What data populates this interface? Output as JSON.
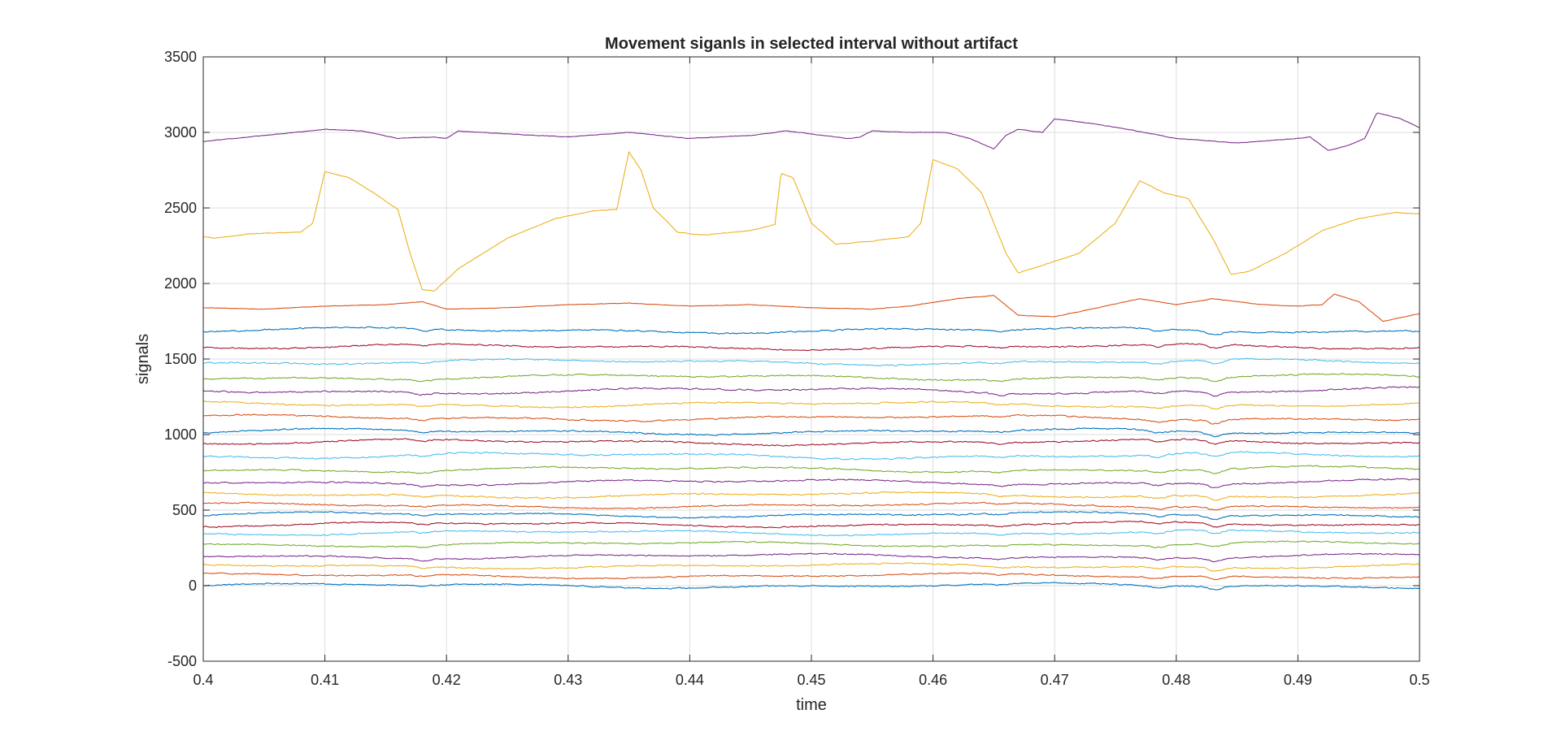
{
  "chart_data": {
    "type": "line",
    "title": "Movement siganls in selected interval without artifact",
    "xlabel": "time",
    "ylabel": "signals",
    "xlim": [
      0.4,
      0.5
    ],
    "ylim": [
      -500,
      3500
    ],
    "grid": true,
    "x_ticks": [
      "0.4",
      "0.41",
      "0.42",
      "0.43",
      "0.44",
      "0.45",
      "0.46",
      "0.47",
      "0.48",
      "0.49",
      "0.5"
    ],
    "y_ticks": [
      "-500",
      "0",
      "500",
      "1000",
      "1500",
      "2000",
      "2500",
      "3000",
      "3500"
    ],
    "series": [
      {
        "color": "#0072BD",
        "baseline": 0,
        "amplitude": 14
      },
      {
        "color": "#D95319",
        "baseline": 65,
        "amplitude": 14
      },
      {
        "color": "#EDB120",
        "baseline": 130,
        "amplitude": 14
      },
      {
        "color": "#7E2F8E",
        "baseline": 195,
        "amplitude": 14
      },
      {
        "color": "#77AC30",
        "baseline": 275,
        "amplitude": 14
      },
      {
        "color": "#4DBEEE",
        "baseline": 350,
        "amplitude": 15
      },
      {
        "color": "#A2142F",
        "baseline": 405,
        "amplitude": 15
      },
      {
        "color": "#0072BD",
        "baseline": 470,
        "amplitude": 15
      },
      {
        "color": "#D95319",
        "baseline": 530,
        "amplitude": 15
      },
      {
        "color": "#EDB120",
        "baseline": 600,
        "amplitude": 16
      },
      {
        "color": "#7E2F8E",
        "baseline": 685,
        "amplitude": 16
      },
      {
        "color": "#77AC30",
        "baseline": 770,
        "amplitude": 16
      },
      {
        "color": "#4DBEEE",
        "baseline": 860,
        "amplitude": 18
      },
      {
        "color": "#A2142F",
        "baseline": 950,
        "amplitude": 16
      },
      {
        "color": "#0072BD",
        "baseline": 1020,
        "amplitude": 16
      },
      {
        "color": "#D95319",
        "baseline": 1110,
        "amplitude": 16
      },
      {
        "color": "#EDB120",
        "baseline": 1200,
        "amplitude": 16
      },
      {
        "color": "#7E2F8E",
        "baseline": 1290,
        "amplitude": 18
      },
      {
        "color": "#77AC30",
        "baseline": 1380,
        "amplitude": 16
      },
      {
        "color": "#4DBEEE",
        "baseline": 1480,
        "amplitude": 16
      },
      {
        "color": "#A2142F",
        "baseline": 1580,
        "amplitude": 16
      },
      {
        "color": "#0072BD",
        "baseline": 1690,
        "amplitude": 16
      },
      {
        "color": "#D95319",
        "amplitude": 5,
        "points": [
          [
            0.4,
            1840
          ],
          [
            0.405,
            1830
          ],
          [
            0.41,
            1850
          ],
          [
            0.415,
            1860
          ],
          [
            0.418,
            1880
          ],
          [
            0.42,
            1830
          ],
          [
            0.425,
            1840
          ],
          [
            0.43,
            1860
          ],
          [
            0.435,
            1870
          ],
          [
            0.44,
            1850
          ],
          [
            0.445,
            1860
          ],
          [
            0.45,
            1840
          ],
          [
            0.455,
            1830
          ],
          [
            0.458,
            1850
          ],
          [
            0.462,
            1900
          ],
          [
            0.465,
            1920
          ],
          [
            0.467,
            1790
          ],
          [
            0.47,
            1780
          ],
          [
            0.473,
            1830
          ],
          [
            0.477,
            1900
          ],
          [
            0.48,
            1860
          ],
          [
            0.483,
            1900
          ],
          [
            0.487,
            1860
          ],
          [
            0.49,
            1850
          ],
          [
            0.492,
            1860
          ],
          [
            0.493,
            1930
          ],
          [
            0.495,
            1880
          ],
          [
            0.497,
            1750
          ],
          [
            0.5,
            1800
          ]
        ]
      },
      {
        "color": "#EDB120",
        "amplitude": 6,
        "points": [
          [
            0.4,
            2310
          ],
          [
            0.401,
            2300
          ],
          [
            0.404,
            2330
          ],
          [
            0.408,
            2340
          ],
          [
            0.409,
            2400
          ],
          [
            0.41,
            2740
          ],
          [
            0.412,
            2700
          ],
          [
            0.414,
            2600
          ],
          [
            0.416,
            2490
          ],
          [
            0.417,
            2200
          ],
          [
            0.418,
            1960
          ],
          [
            0.419,
            1950
          ],
          [
            0.421,
            2100
          ],
          [
            0.425,
            2300
          ],
          [
            0.429,
            2430
          ],
          [
            0.432,
            2480
          ],
          [
            0.434,
            2490
          ],
          [
            0.435,
            2870
          ],
          [
            0.436,
            2750
          ],
          [
            0.437,
            2500
          ],
          [
            0.439,
            2340
          ],
          [
            0.441,
            2320
          ],
          [
            0.445,
            2350
          ],
          [
            0.447,
            2390
          ],
          [
            0.4475,
            2730
          ],
          [
            0.4485,
            2700
          ],
          [
            0.45,
            2400
          ],
          [
            0.452,
            2260
          ],
          [
            0.455,
            2280
          ],
          [
            0.458,
            2310
          ],
          [
            0.459,
            2400
          ],
          [
            0.46,
            2820
          ],
          [
            0.462,
            2760
          ],
          [
            0.464,
            2600
          ],
          [
            0.466,
            2200
          ],
          [
            0.467,
            2070
          ],
          [
            0.469,
            2120
          ],
          [
            0.472,
            2200
          ],
          [
            0.475,
            2400
          ],
          [
            0.477,
            2680
          ],
          [
            0.479,
            2600
          ],
          [
            0.481,
            2560
          ],
          [
            0.483,
            2300
          ],
          [
            0.4845,
            2060
          ],
          [
            0.486,
            2080
          ],
          [
            0.489,
            2200
          ],
          [
            0.492,
            2350
          ],
          [
            0.495,
            2430
          ],
          [
            0.498,
            2470
          ],
          [
            0.5,
            2460
          ]
        ]
      },
      {
        "color": "#7E2F8E",
        "amplitude": 6,
        "points": [
          [
            0.4,
            2940
          ],
          [
            0.405,
            2980
          ],
          [
            0.41,
            3020
          ],
          [
            0.413,
            3010
          ],
          [
            0.416,
            2960
          ],
          [
            0.419,
            2970
          ],
          [
            0.42,
            2960
          ],
          [
            0.421,
            3010
          ],
          [
            0.425,
            2990
          ],
          [
            0.43,
            2970
          ],
          [
            0.435,
            3000
          ],
          [
            0.44,
            2960
          ],
          [
            0.445,
            2980
          ],
          [
            0.448,
            3010
          ],
          [
            0.45,
            2990
          ],
          [
            0.453,
            2960
          ],
          [
            0.454,
            2970
          ],
          [
            0.455,
            3010
          ],
          [
            0.458,
            3000
          ],
          [
            0.461,
            3000
          ],
          [
            0.463,
            2960
          ],
          [
            0.465,
            2890
          ],
          [
            0.466,
            2980
          ],
          [
            0.467,
            3020
          ],
          [
            0.469,
            3000
          ],
          [
            0.47,
            3090
          ],
          [
            0.473,
            3060
          ],
          [
            0.476,
            3020
          ],
          [
            0.48,
            2960
          ],
          [
            0.485,
            2930
          ],
          [
            0.49,
            2960
          ],
          [
            0.491,
            2970
          ],
          [
            0.4925,
            2880
          ],
          [
            0.494,
            2910
          ],
          [
            0.4955,
            2960
          ],
          [
            0.4965,
            3130
          ],
          [
            0.4985,
            3090
          ],
          [
            0.5,
            3030
          ]
        ]
      }
    ]
  }
}
